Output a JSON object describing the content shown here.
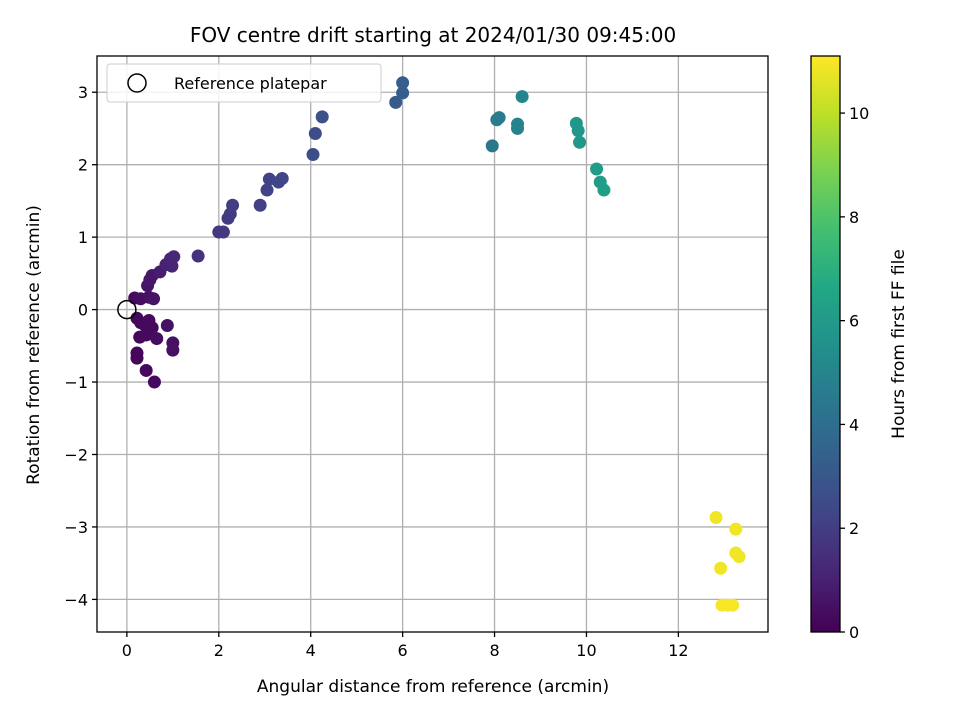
{
  "chart_data": {
    "type": "scatter",
    "title": "FOV centre drift starting at 2024/01/30 09:45:00",
    "xlabel": "Angular distance from reference (arcmin)",
    "ylabel": "Rotation from reference (arcmin)",
    "xlim": [
      -0.65,
      13.95
    ],
    "ylim": [
      -4.45,
      3.5
    ],
    "xticks": [
      0,
      2,
      4,
      6,
      8,
      10,
      12
    ],
    "yticks": [
      -4,
      -3,
      -2,
      -1,
      0,
      1,
      2,
      3
    ],
    "xtick_labels": [
      "0",
      "2",
      "4",
      "6",
      "8",
      "10",
      "12"
    ],
    "ytick_labels": [
      "−4",
      "−3",
      "−2",
      "−1",
      "0",
      "1",
      "2",
      "3"
    ],
    "grid": true,
    "legend": {
      "placement": "top-left",
      "entries": [
        {
          "label": "Reference platepar",
          "marker": "open-circle"
        }
      ]
    },
    "reference_point": {
      "x": 0,
      "y": 0
    },
    "colorbar": {
      "label": "Hours from first FF file",
      "range": [
        0,
        11.1
      ],
      "ticks": [
        0,
        2,
        4,
        6,
        8,
        10
      ],
      "tick_labels": [
        "0",
        "2",
        "4",
        "6",
        "8",
        "10"
      ],
      "colormap": "viridis"
    },
    "points": [
      {
        "x": 0.17,
        "y": 0.16,
        "h": 0.3
      },
      {
        "x": 0.3,
        "y": 0.15,
        "h": 0.4
      },
      {
        "x": 0.45,
        "y": 0.33,
        "h": 0.6
      },
      {
        "x": 0.5,
        "y": 0.41,
        "h": 0.7
      },
      {
        "x": 0.55,
        "y": 0.47,
        "h": 0.7
      },
      {
        "x": 0.48,
        "y": 0.17,
        "h": 0.5
      },
      {
        "x": 0.58,
        "y": 0.15,
        "h": 0.6
      },
      {
        "x": 0.72,
        "y": 0.52,
        "h": 0.9
      },
      {
        "x": 0.85,
        "y": 0.62,
        "h": 1.0
      },
      {
        "x": 0.95,
        "y": 0.7,
        "h": 1.1
      },
      {
        "x": 1.02,
        "y": 0.73,
        "h": 1.2
      },
      {
        "x": 0.98,
        "y": 0.6,
        "h": 1.1
      },
      {
        "x": 0.22,
        "y": -0.12,
        "h": 0.2
      },
      {
        "x": 0.3,
        "y": -0.18,
        "h": 0.2
      },
      {
        "x": 0.4,
        "y": -0.22,
        "h": 0.3
      },
      {
        "x": 0.48,
        "y": -0.15,
        "h": 0.3
      },
      {
        "x": 0.55,
        "y": -0.25,
        "h": 0.3
      },
      {
        "x": 0.28,
        "y": -0.38,
        "h": 0.2
      },
      {
        "x": 0.42,
        "y": -0.35,
        "h": 0.3
      },
      {
        "x": 0.5,
        "y": -0.3,
        "h": 0.3
      },
      {
        "x": 0.65,
        "y": -0.4,
        "h": 0.4
      },
      {
        "x": 0.88,
        "y": -0.22,
        "h": 0.5
      },
      {
        "x": 1.0,
        "y": -0.46,
        "h": 0.5
      },
      {
        "x": 1.0,
        "y": -0.56,
        "h": 0.5
      },
      {
        "x": 0.22,
        "y": -0.6,
        "h": 0.2
      },
      {
        "x": 0.22,
        "y": -0.67,
        "h": 0.2
      },
      {
        "x": 0.42,
        "y": -0.84,
        "h": 0.3
      },
      {
        "x": 0.6,
        "y": -1.0,
        "h": 0.3
      },
      {
        "x": 1.55,
        "y": 0.74,
        "h": 1.6
      },
      {
        "x": 2.0,
        "y": 1.07,
        "h": 1.8
      },
      {
        "x": 2.1,
        "y": 1.07,
        "h": 1.8
      },
      {
        "x": 2.2,
        "y": 1.26,
        "h": 1.9
      },
      {
        "x": 2.25,
        "y": 1.32,
        "h": 1.9
      },
      {
        "x": 2.3,
        "y": 1.44,
        "h": 2.0
      },
      {
        "x": 2.9,
        "y": 1.44,
        "h": 2.1
      },
      {
        "x": 3.05,
        "y": 1.65,
        "h": 2.2
      },
      {
        "x": 3.1,
        "y": 1.8,
        "h": 2.2
      },
      {
        "x": 3.3,
        "y": 1.76,
        "h": 2.3
      },
      {
        "x": 3.38,
        "y": 1.81,
        "h": 2.3
      },
      {
        "x": 4.05,
        "y": 2.14,
        "h": 2.6
      },
      {
        "x": 4.1,
        "y": 2.43,
        "h": 2.6
      },
      {
        "x": 4.25,
        "y": 2.66,
        "h": 2.7
      },
      {
        "x": 5.85,
        "y": 2.86,
        "h": 3.2
      },
      {
        "x": 6.0,
        "y": 3.13,
        "h": 3.3
      },
      {
        "x": 6.0,
        "y": 2.99,
        "h": 3.3
      },
      {
        "x": 7.95,
        "y": 2.26,
        "h": 4.4
      },
      {
        "x": 8.05,
        "y": 2.62,
        "h": 4.6
      },
      {
        "x": 8.1,
        "y": 2.65,
        "h": 4.6
      },
      {
        "x": 8.5,
        "y": 2.56,
        "h": 4.9
      },
      {
        "x": 8.5,
        "y": 2.5,
        "h": 4.9
      },
      {
        "x": 8.6,
        "y": 2.94,
        "h": 5.0
      },
      {
        "x": 9.78,
        "y": 2.57,
        "h": 5.8
      },
      {
        "x": 9.82,
        "y": 2.47,
        "h": 5.8
      },
      {
        "x": 9.85,
        "y": 2.31,
        "h": 5.8
      },
      {
        "x": 10.22,
        "y": 1.94,
        "h": 6.1
      },
      {
        "x": 10.3,
        "y": 1.76,
        "h": 6.1
      },
      {
        "x": 10.38,
        "y": 1.65,
        "h": 6.2
      },
      {
        "x": 12.82,
        "y": -2.87,
        "h": 10.9
      },
      {
        "x": 13.25,
        "y": -3.03,
        "h": 10.9
      },
      {
        "x": 12.92,
        "y": -3.57,
        "h": 10.9
      },
      {
        "x": 13.25,
        "y": -3.36,
        "h": 10.9
      },
      {
        "x": 13.32,
        "y": -3.41,
        "h": 10.9
      },
      {
        "x": 12.95,
        "y": -4.08,
        "h": 11.0
      },
      {
        "x": 13.08,
        "y": -4.08,
        "h": 11.0
      },
      {
        "x": 13.18,
        "y": -4.08,
        "h": 11.0
      }
    ]
  }
}
